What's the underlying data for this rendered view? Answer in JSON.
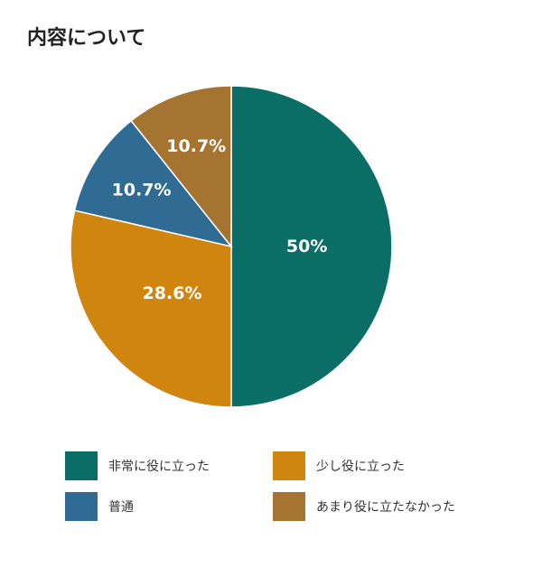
{
  "title": "内容について",
  "chart_data": {
    "type": "pie",
    "title": "内容について",
    "slices": [
      {
        "label": "非常に役に立った",
        "value": 50,
        "display": "50%",
        "color": "#0b6e66"
      },
      {
        "label": "少し役に立った",
        "value": 28.6,
        "display": "28.6%",
        "color": "#d0850f"
      },
      {
        "label": "普通",
        "value": 10.7,
        "display": "10.7%",
        "color": "#2f6b93"
      },
      {
        "label": "あまり役に立たなかった",
        "value": 10.7,
        "display": "10.7%",
        "color": "#a57430"
      }
    ],
    "legend_position": "bottom"
  }
}
